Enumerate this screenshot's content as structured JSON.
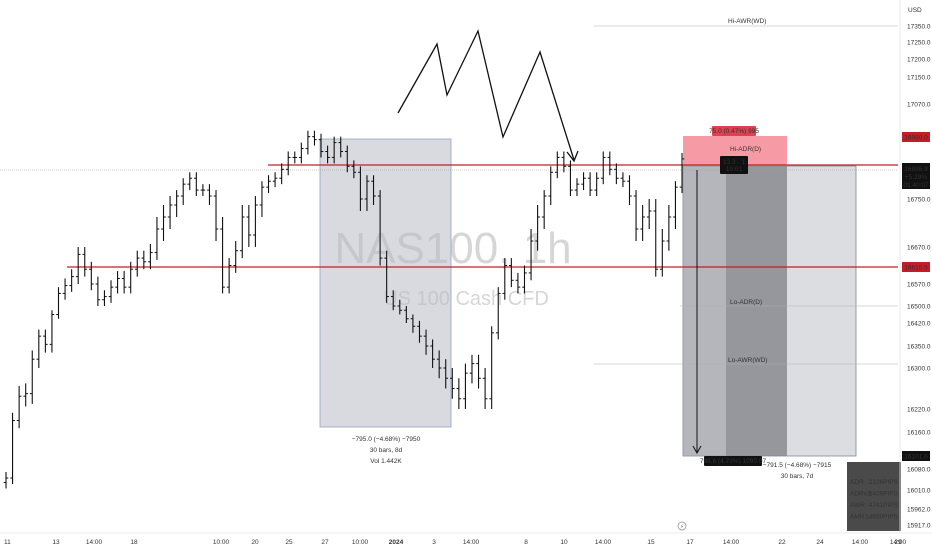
{
  "currency": "USD",
  "watermark": {
    "symbol": "NAS100, 1h",
    "description": "US 100 Cash CFD"
  },
  "price_labels": {
    "red_top": "16980.0",
    "current": "16886.9",
    "current_change": "+5.29%",
    "countdown": "01:40:07",
    "red_mid": "16615.5",
    "bottom_gray": "16101.6"
  },
  "annotations": {
    "hi_awr": "Hi-AWR(WD)",
    "hi_adr": "Hi-ADR(D)",
    "lo_adr": "Lo-ADR(D)",
    "lo_awr": "Lo-AWR(WD)",
    "risk_label": "75.0 (0.47%) 995",
    "entry_label_1": "13.3 - 1",
    "entry_label_2": "10.01",
    "target_label": "798.6 (4.73%) 1090.07",
    "range1_line1": "−795.0 (−4.68%) −7950",
    "range1_line2": "30 bars, 8d",
    "range1_line3": "Vol 1.442K",
    "range2_line1": "−791.5 (−4.68%) −7915",
    "range2_line2": "30 bars, 7d"
  },
  "stats_table": [
    {
      "label": "ADR",
      "value": "2126PIPS"
    },
    {
      "label": "ADRx3",
      "value": "6409PIPS"
    },
    {
      "label": "AWR",
      "value": "4741PIPS"
    },
    {
      "label": "AMR",
      "value": "14650PIPS"
    }
  ],
  "chart_data": {
    "type": "ohlc",
    "title": "NAS100, 1h",
    "currency": "USD",
    "ylim": [
      15870,
      17360
    ],
    "y_ticks": [
      17350.0,
      17250.0,
      17200.0,
      17150.0,
      17070.0,
      16750.0,
      16670.0,
      16570.0,
      16500.0,
      16420.0,
      16350.0,
      16300.0,
      16220.0,
      16160.0,
      16080.0,
      16010.0,
      15962.0,
      15917.0
    ],
    "y_tick_labels": [
      "17350.0",
      "17250.0",
      "17200.0",
      "17150.0",
      "17070.0",
      "16750.0",
      "16670.0",
      "16570.0",
      "16500.0",
      "16420.0",
      "16350.0",
      "16300.0",
      "16220.0",
      "16160.0",
      "16080.0",
      "16010.0",
      "15962.0",
      "15917.0"
    ],
    "x_tick_labels": [
      "11",
      "13",
      "14:00",
      "18",
      "10:00",
      "20",
      "25",
      "27",
      "10:00",
      "2024",
      "3",
      "14:00",
      "8",
      "10",
      "14:00",
      "15",
      "17",
      "14:00",
      "22",
      "24",
      "14:00",
      "29",
      "14:00"
    ],
    "horizontal_levels": [
      {
        "name": "resistance",
        "value": 16886.9
      },
      {
        "name": "support",
        "value": 16615.5
      }
    ],
    "closes": [
      16050,
      16190,
      16245,
      16250,
      16320,
      16380,
      16355,
      16460,
      16540,
      16565,
      16590,
      16650,
      16610,
      16570,
      16520,
      16530,
      16560,
      16585,
      16560,
      16610,
      16640,
      16630,
      16655,
      16700,
      16720,
      16740,
      16760,
      16800,
      16820,
      16780,
      16780,
      16760,
      16700,
      16560,
      16620,
      16660,
      16720,
      16690,
      16740,
      16790,
      16810,
      16820,
      16850,
      16890,
      16890,
      16920,
      16960,
      16950,
      16910,
      16890,
      16940,
      16910,
      16860,
      16840,
      16750,
      16810,
      16760,
      16640,
      16530,
      16500,
      16480,
      16440,
      16410,
      16380,
      16350,
      16320,
      16300,
      16280,
      16260,
      16240,
      16290,
      16310,
      16280,
      16240,
      16390,
      16540,
      16620,
      16580,
      16560,
      16600,
      16680,
      16720,
      16760,
      16840,
      16890,
      16860,
      16780,
      16800,
      16820,
      16780,
      16820,
      16890,
      16850,
      16820,
      16810,
      16760,
      16700,
      16720,
      16730,
      16610,
      16680,
      16720,
      16790,
      16885
    ],
    "overlays": [
      {
        "type": "date-price range",
        "text": [
          "−795.0 (−4.68%) −7950",
          "30 bars, 8d",
          "Vol 1.442K"
        ]
      },
      {
        "type": "short position",
        "risk": "75.0 (0.47%) 995",
        "target": "798.6 (4.73%) 1090.07"
      },
      {
        "type": "date-price range",
        "text": [
          "−791.5 (−4.68%) −7915",
          "30 bars, 7d"
        ]
      }
    ]
  }
}
